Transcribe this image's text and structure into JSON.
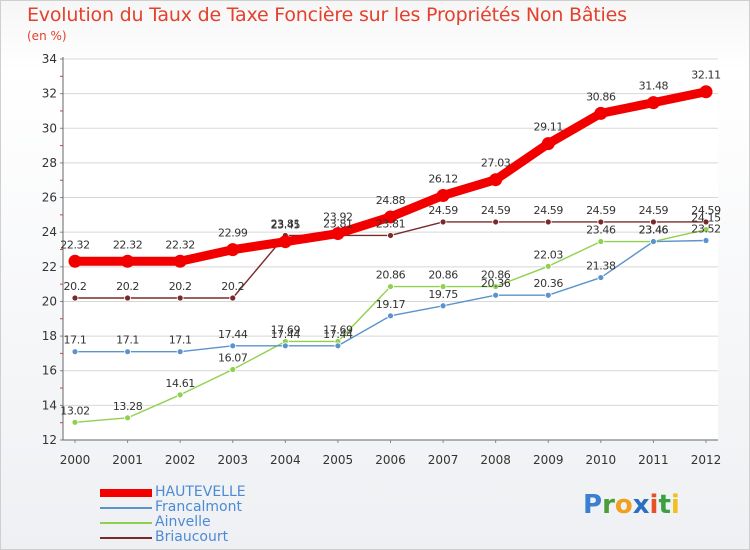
{
  "chart_data": {
    "type": "line",
    "title": "Evolution du Taux de Taxe Foncière sur les Propriétés Non Bâties",
    "ylabel": "(en %)",
    "xlabel": "",
    "x": [
      "2000",
      "2001",
      "2002",
      "2003",
      "2004",
      "2005",
      "2006",
      "2007",
      "2008",
      "2009",
      "2010",
      "2011",
      "2012"
    ],
    "ylim": [
      12,
      34
    ],
    "yticks": [
      12,
      14,
      16,
      18,
      20,
      22,
      24,
      26,
      28,
      30,
      32,
      34
    ],
    "grid": "horizontal",
    "legend_position": "bottom-left",
    "series": [
      {
        "name": "HAUTEVELLE",
        "color": "#f20000",
        "values": [
          22.32,
          22.32,
          22.32,
          22.99,
          23.45,
          23.92,
          24.88,
          26.12,
          27.03,
          29.11,
          30.86,
          31.48,
          32.11
        ],
        "labels": [
          "22.32",
          "22.32",
          "22.32",
          "22.99",
          "23.45",
          "23.92",
          "24.88",
          "26.12",
          "27.03",
          "29.11",
          "30.86",
          "31.48",
          "32.11"
        ]
      },
      {
        "name": "Francalmont",
        "color": "#5b93cc",
        "values": [
          17.1,
          17.1,
          17.1,
          17.44,
          17.44,
          17.44,
          19.17,
          19.75,
          20.36,
          20.36,
          21.38,
          23.46,
          23.52
        ],
        "labels": [
          "17.1",
          "17.1",
          "17.1",
          "17.44",
          "17.44",
          "17.44",
          "19.17",
          "19.75",
          "20.36",
          "20.36",
          "21.38",
          "23.46",
          "23.52"
        ]
      },
      {
        "name": "Ainvelle",
        "color": "#8fd14f",
        "values": [
          13.02,
          13.28,
          14.61,
          16.07,
          17.69,
          17.69,
          20.86,
          20.86,
          20.86,
          22.03,
          23.46,
          23.46,
          24.15
        ],
        "labels": [
          "13.02",
          "13.28",
          "14.61",
          "16.07",
          "17.69",
          "17.69",
          "20.86",
          "20.86",
          "20.86",
          "22.03",
          "23.46",
          "23.46",
          "24.15"
        ]
      },
      {
        "name": "Briaucourt",
        "color": "#7a2a2a",
        "values": [
          20.2,
          20.2,
          20.2,
          20.2,
          23.81,
          23.81,
          23.81,
          24.59,
          24.59,
          24.59,
          24.59,
          24.59,
          24.59
        ],
        "labels": [
          "20.2",
          "20.2",
          "20.2",
          "20.2",
          "23.81",
          "23.81",
          "23.81",
          "24.59",
          "24.59",
          "24.59",
          "24.59",
          "24.59",
          "24.59"
        ]
      }
    ]
  },
  "logo": {
    "letters": [
      "P",
      "r",
      "o",
      "x",
      "i",
      "t",
      "i"
    ],
    "colors": [
      "#3a7fd0",
      "#4a9e3a",
      "#f0a020",
      "#2a6fc0",
      "#e8502a",
      "#3aa040",
      "#f0c020"
    ]
  }
}
